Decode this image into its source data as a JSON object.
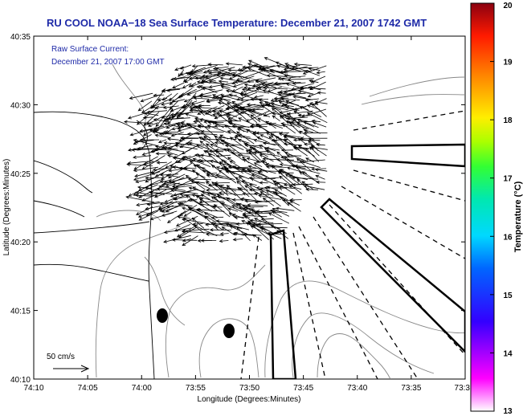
{
  "header": {
    "title": "RU COOL  NOAA−18  Sea Surface Temperature:  December 21, 2007 1742 GMT",
    "legend_line1": "Raw Surface Current:",
    "legend_line2": "December 21, 2007 17:00 GMT"
  },
  "axes": {
    "xlabel": "Longitude (Degrees:Minutes)",
    "ylabel": "Latitude (Degrees:Minutes)",
    "xticks": [
      "74:10",
      "74:05",
      "74:00",
      "73:55",
      "73:50",
      "73:45",
      "73:40",
      "73:35",
      "73:3"
    ],
    "yticks": [
      "40:35",
      "40:30",
      "40:25",
      "40:20",
      "40:15",
      "40:10"
    ]
  },
  "scale_label": "50 cm/s",
  "colorbar": {
    "label": "Temperature (°C)",
    "ticks": [
      "20",
      "19",
      "18",
      "17",
      "16",
      "15",
      "14",
      "13"
    ],
    "min": 13,
    "max": 20
  },
  "colors": {
    "title": "#1e2aa8",
    "contour": "#888888",
    "arrows": "#000000"
  }
}
